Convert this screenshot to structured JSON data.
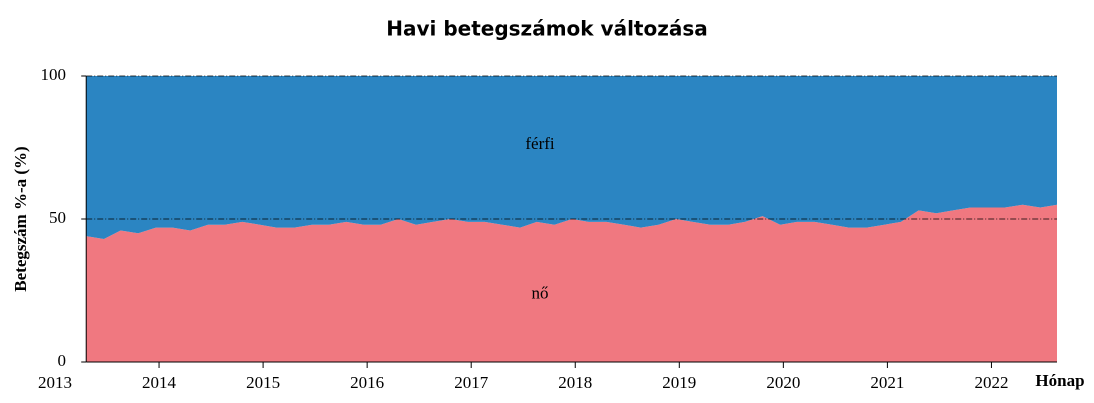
{
  "chart_data": {
    "type": "stacked_area",
    "title": "Havi betegszámok változása",
    "ylabel": "Betegszám %-a (%)",
    "xlabel": "Hónap",
    "x": [
      2013.3,
      2013.47,
      2013.63,
      2013.8,
      2013.97,
      2014.13,
      2014.3,
      2014.47,
      2014.63,
      2014.8,
      2014.97,
      2015.13,
      2015.3,
      2015.47,
      2015.63,
      2015.8,
      2015.97,
      2016.13,
      2016.3,
      2016.47,
      2016.63,
      2016.8,
      2016.97,
      2017.13,
      2017.3,
      2017.47,
      2017.63,
      2017.8,
      2017.97,
      2018.13,
      2018.3,
      2018.47,
      2018.63,
      2018.8,
      2018.97,
      2019.13,
      2019.3,
      2019.47,
      2019.63,
      2019.8,
      2019.97,
      2020.13,
      2020.3,
      2020.47,
      2020.63,
      2020.8,
      2020.97,
      2021.13,
      2021.3,
      2021.47,
      2021.63,
      2021.8,
      2021.97,
      2022.13,
      2022.3,
      2022.47,
      2022.63
    ],
    "series": [
      {
        "name": "nő",
        "color": "#f07880",
        "values": [
          44,
          43,
          46,
          45,
          47,
          47,
          46,
          48,
          48,
          49,
          48,
          47,
          47,
          48,
          48,
          49,
          48,
          48,
          50,
          48,
          49,
          50,
          49,
          49,
          48,
          47,
          49,
          48,
          50,
          49,
          49,
          48,
          47,
          48,
          50,
          49,
          48,
          48,
          49,
          51,
          48,
          49,
          49,
          48,
          47,
          47,
          48,
          49,
          53,
          52,
          53,
          54,
          54,
          54,
          55,
          54,
          55
        ]
      },
      {
        "name": "férfi",
        "color": "#2b85c2",
        "values": [
          56,
          57,
          54,
          55,
          53,
          53,
          54,
          52,
          52,
          51,
          52,
          53,
          53,
          52,
          52,
          51,
          52,
          52,
          50,
          52,
          51,
          50,
          51,
          51,
          52,
          53,
          51,
          52,
          50,
          51,
          51,
          52,
          53,
          52,
          50,
          51,
          52,
          52,
          51,
          49,
          52,
          51,
          51,
          52,
          53,
          53,
          52,
          51,
          47,
          48,
          47,
          46,
          46,
          46,
          45,
          46,
          45
        ]
      }
    ],
    "xlim": [
      2013,
      2022.63
    ],
    "xticks": [
      2013,
      2014,
      2015,
      2016,
      2017,
      2018,
      2019,
      2020,
      2021,
      2022
    ],
    "ylim": [
      0,
      100
    ],
    "yticks": [
      0,
      50,
      100
    ],
    "grid": true
  }
}
